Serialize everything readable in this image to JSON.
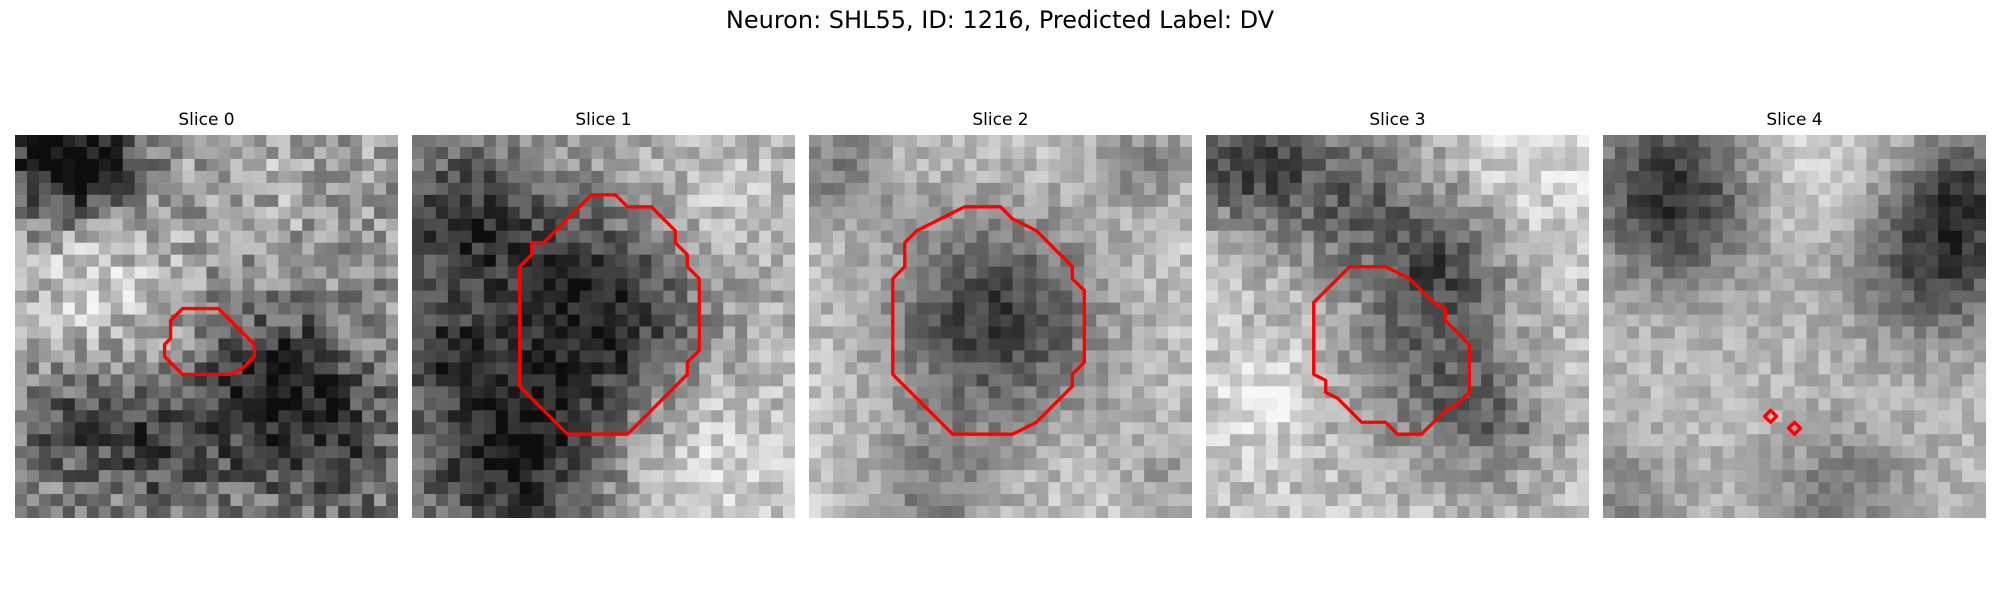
{
  "figure": {
    "title": "Neuron: SHL55, ID: 1216, Predicted Label: DV"
  },
  "contour_color": "#ff0000",
  "panels": [
    {
      "title": "Slice 0"
    },
    {
      "title": "Slice 1"
    },
    {
      "title": "Slice 2"
    },
    {
      "title": "Slice 3"
    },
    {
      "title": "Slice 4"
    }
  ]
}
